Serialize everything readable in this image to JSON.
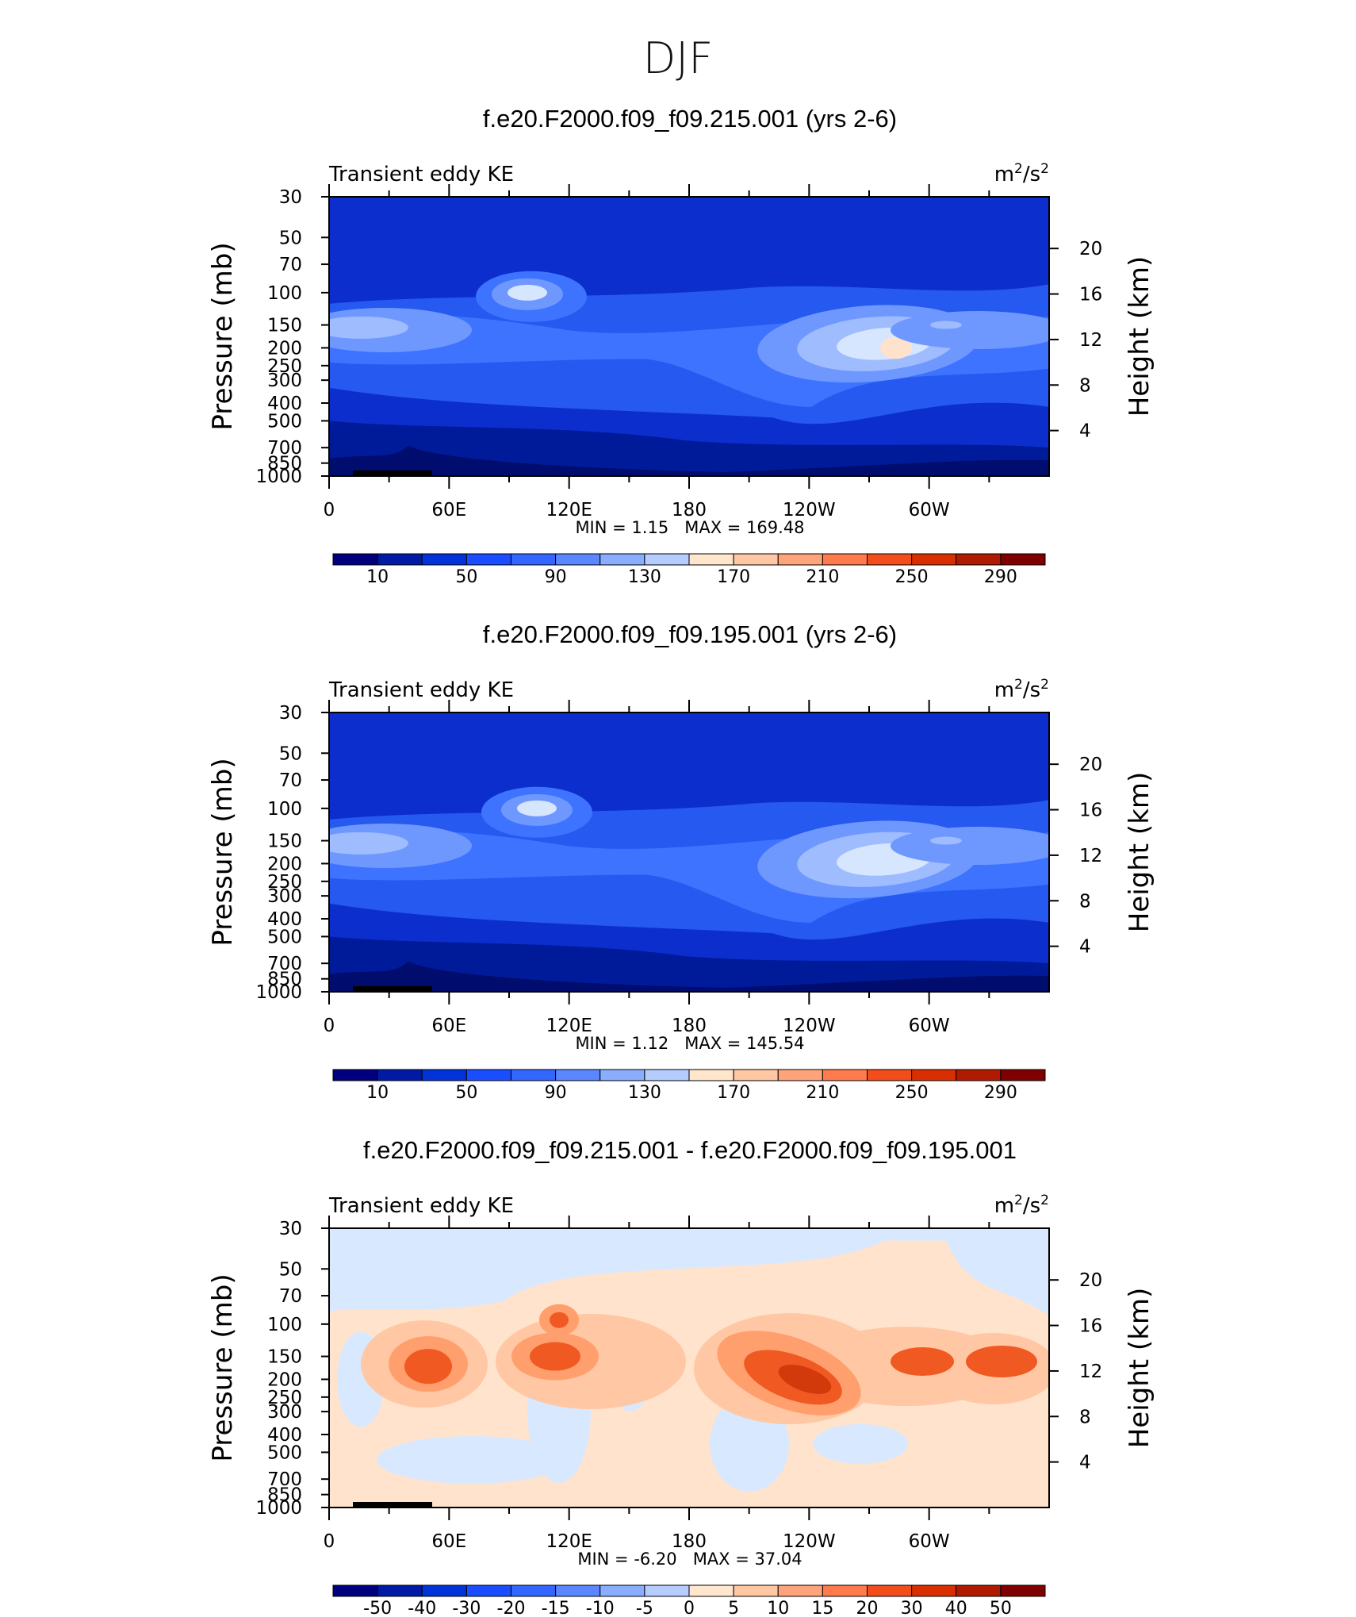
{
  "page_title": "DJF",
  "palette_blue_red": [
    "#00007f",
    "#001aa6",
    "#0033d9",
    "#1a4dff",
    "#3366ff",
    "#5a87ff",
    "#8aadff",
    "#b5ccff",
    "#dbe8ff",
    "#ffe6cc",
    "#ffc7a3",
    "#ffa37a",
    "#ff7a4d",
    "#f24d1a",
    "#d92e00",
    "#b01a00",
    "#7f0000"
  ],
  "contour_colors": {
    "bg": "#0a2fd0",
    "upper": "#0c2ecc",
    "band1": "#2559f0",
    "band2": "#3d73ff",
    "band3": "#6f98ff",
    "band4": "#9fbcff",
    "core": "#d6e6ff",
    "peak": "#ffe2cc",
    "surface": "#001b9a",
    "surface_dark": "#000d6e",
    "diff_bg": "#ffe3cc",
    "diff_neg": "#d8e8ff",
    "diff_mid": "#ffc7a3",
    "diff_hi": "#ff9f6e",
    "diff_peak": "#f05a22",
    "diff_top": "#d23a0c"
  },
  "axis": {
    "left_label": "Pressure (mb)",
    "right_label": "Height (km)",
    "pressure_ticks": [
      "30",
      "50",
      "70",
      "100",
      "150",
      "200",
      "250",
      "300",
      "400",
      "500",
      "700",
      "850",
      "1000"
    ],
    "height_ticks": [
      "20",
      "16",
      "12",
      "8",
      "4"
    ],
    "lon_ticks": [
      "0",
      "60E",
      "120E",
      "180",
      "120W",
      "60W"
    ]
  },
  "panels": [
    {
      "title": "f.e20.F2000.f09_f09.215.001 (yrs 2-6)",
      "left_string": "Transient eddy KE",
      "units_base": "m",
      "units_exp1": "2",
      "units_mid": "/s",
      "units_exp2": "2",
      "min_label": "MIN =",
      "min_value": "1.15",
      "max_label": "MAX =",
      "max_value": "169.48",
      "colorbar_labels": [
        "10",
        "50",
        "90",
        "130",
        "170",
        "210",
        "250",
        "290"
      ]
    },
    {
      "title": "f.e20.F2000.f09_f09.195.001 (yrs 2-6)",
      "left_string": "Transient eddy KE",
      "units_base": "m",
      "units_exp1": "2",
      "units_mid": "/s",
      "units_exp2": "2",
      "min_label": "MIN =",
      "min_value": "1.12",
      "max_label": "MAX =",
      "max_value": "145.54",
      "colorbar_labels": [
        "10",
        "50",
        "90",
        "130",
        "170",
        "210",
        "250",
        "290"
      ]
    },
    {
      "title": "f.e20.F2000.f09_f09.215.001 - f.e20.F2000.f09_f09.195.001",
      "left_string": "Transient eddy KE",
      "units_base": "m",
      "units_exp1": "2",
      "units_mid": "/s",
      "units_exp2": "2",
      "min_label": "MIN =",
      "min_value": "-6.20",
      "max_label": "MAX =",
      "max_value": "37.04",
      "colorbar_labels": [
        "-50",
        "-40",
        "-30",
        "-20",
        "-15",
        "-10",
        "-5",
        "0",
        "5",
        "10",
        "15",
        "20",
        "30",
        "40",
        "50"
      ]
    }
  ],
  "chart_data": [
    {
      "type": "heatmap",
      "title": "f.e20.F2000.f09_f09.215.001 (yrs 2-6)",
      "variable": "Transient eddy KE",
      "units": "m2/s2",
      "x": [
        "0",
        "60E",
        "120E",
        "180",
        "120W",
        "60W"
      ],
      "y_pressure": [
        30,
        50,
        70,
        100,
        150,
        200,
        250,
        300,
        400,
        500,
        700,
        850,
        1000
      ],
      "y_height_km": [
        20,
        16,
        12,
        8,
        4
      ],
      "min": 1.15,
      "max": 169.48,
      "levels": [
        10,
        50,
        90,
        130,
        170,
        210,
        250,
        290
      ]
    },
    {
      "type": "heatmap",
      "title": "f.e20.F2000.f09_f09.195.001 (yrs 2-6)",
      "variable": "Transient eddy KE",
      "units": "m2/s2",
      "x": [
        "0",
        "60E",
        "120E",
        "180",
        "120W",
        "60W"
      ],
      "y_pressure": [
        30,
        50,
        70,
        100,
        150,
        200,
        250,
        300,
        400,
        500,
        700,
        850,
        1000
      ],
      "y_height_km": [
        20,
        16,
        12,
        8,
        4
      ],
      "min": 1.12,
      "max": 145.54,
      "levels": [
        10,
        50,
        90,
        130,
        170,
        210,
        250,
        290
      ]
    },
    {
      "type": "heatmap",
      "title": "f.e20.F2000.f09_f09.215.001 - f.e20.F2000.f09_f09.195.001",
      "variable": "Transient eddy KE",
      "units": "m2/s2",
      "x": [
        "0",
        "60E",
        "120E",
        "180",
        "120W",
        "60W"
      ],
      "y_pressure": [
        30,
        50,
        70,
        100,
        150,
        200,
        250,
        300,
        400,
        500,
        700,
        850,
        1000
      ],
      "y_height_km": [
        20,
        16,
        12,
        8,
        4
      ],
      "min": -6.2,
      "max": 37.04,
      "levels": [
        -50,
        -40,
        -30,
        -20,
        -15,
        -10,
        -5,
        0,
        5,
        10,
        15,
        20,
        30,
        40,
        50
      ]
    }
  ]
}
